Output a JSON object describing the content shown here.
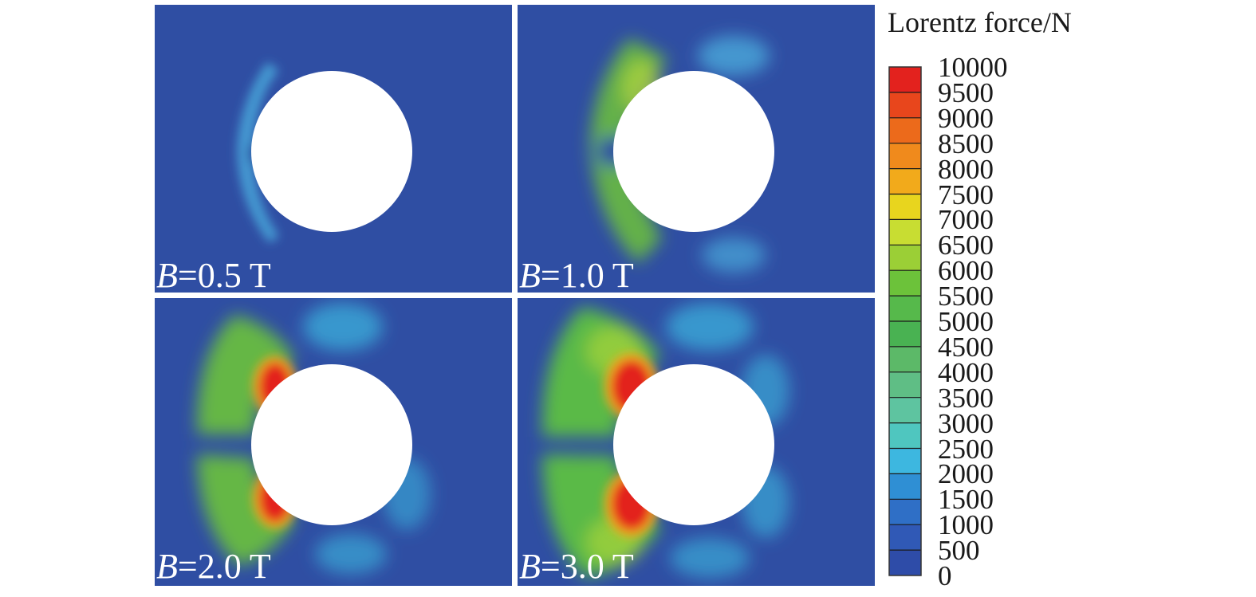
{
  "colorbar": {
    "title": "Lorentz force/N",
    "ticks": [
      "10000",
      "9500",
      "9000",
      "8500",
      "8000",
      "7500",
      "7000",
      "6500",
      "6000",
      "5500",
      "5000",
      "4500",
      "4000",
      "3500",
      "3000",
      "2500",
      "2000",
      "1500",
      "1000",
      "500",
      "0"
    ],
    "colors": [
      "#e3221e",
      "#e8461c",
      "#ec6a1b",
      "#f08a1c",
      "#f2aa1b",
      "#e8d51e",
      "#c8dd32",
      "#9bcf36",
      "#6cc23a",
      "#56b94b",
      "#49b252",
      "#5cb968",
      "#5fbe85",
      "#5ec4a0",
      "#4fc6bf",
      "#3db7e0",
      "#2f8fd4",
      "#2f6fc6",
      "#3059b6",
      "#2e4ca8"
    ]
  },
  "panels": [
    {
      "var": "B",
      "value": "=0.5 T",
      "level": 0.15
    },
    {
      "var": "B",
      "value": "=1.0 T",
      "level": 0.45
    },
    {
      "var": "B",
      "value": "=2.0 T",
      "level": 0.85
    },
    {
      "var": "B",
      "value": "=3.0 T",
      "level": 1.0
    }
  ],
  "colors": {
    "background": "#2f4ea3",
    "obstacle": "#ffffff"
  }
}
